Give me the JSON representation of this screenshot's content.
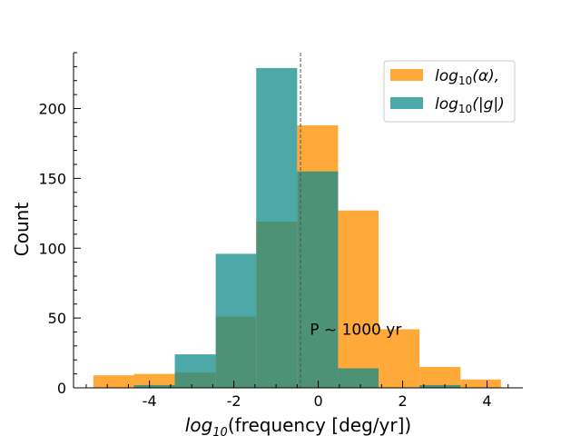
{
  "chart_data": {
    "type": "histogram",
    "xlabel": "log10(frequency [deg/yr])",
    "xlabel_parts": {
      "fn": "log",
      "sub": "10",
      "rest": "(frequency [deg/yr])"
    },
    "ylabel": "Count",
    "xlim": [
      -5.8,
      4.85
    ],
    "ylim": [
      0,
      240
    ],
    "xticks": [
      -4,
      -2,
      0,
      2,
      4
    ],
    "xtick_labels": [
      "-4",
      "-2",
      "0",
      "2",
      "4"
    ],
    "yticks": [
      0,
      50,
      100,
      150,
      200
    ],
    "ytick_labels": [
      "0",
      "50",
      "100",
      "150",
      "200"
    ],
    "series": [
      {
        "name": "log10(α),",
        "legend_parts": {
          "fn": "log",
          "sub": "10",
          "rest": "(α),"
        },
        "color": "#ff9a17",
        "alpha": 0.85,
        "bins": [
          {
            "x0": -5.33,
            "x1": -4.37,
            "count": 9
          },
          {
            "x0": -4.37,
            "x1": -3.4,
            "count": 10
          },
          {
            "x0": -3.4,
            "x1": -2.43,
            "count": 11
          },
          {
            "x0": -2.43,
            "x1": -1.47,
            "count": 51
          },
          {
            "x0": -1.47,
            "x1": -0.5,
            "count": 119
          },
          {
            "x0": -0.5,
            "x1": 0.47,
            "count": 188
          },
          {
            "x0": 0.47,
            "x1": 1.43,
            "count": 127
          },
          {
            "x0": 1.43,
            "x1": 2.4,
            "count": 42
          },
          {
            "x0": 2.4,
            "x1": 3.37,
            "count": 15
          },
          {
            "x0": 3.37,
            "x1": 4.33,
            "count": 6
          }
        ]
      },
      {
        "name": "log10(|g|)",
        "legend_parts": {
          "fn": "log",
          "sub": "10",
          "rest": "(|g|)"
        },
        "color": "#128b8b",
        "alpha": 0.75,
        "bins": [
          {
            "x0": -4.37,
            "x1": -3.4,
            "count": 2
          },
          {
            "x0": -3.4,
            "x1": -2.43,
            "count": 24
          },
          {
            "x0": -2.43,
            "x1": -1.47,
            "count": 96
          },
          {
            "x0": -1.47,
            "x1": -0.5,
            "count": 229
          },
          {
            "x0": -0.5,
            "x1": 0.47,
            "count": 155
          },
          {
            "x0": 0.47,
            "x1": 1.43,
            "count": 14
          },
          {
            "x0": 2.4,
            "x1": 3.37,
            "count": 2
          }
        ]
      }
    ],
    "vline": {
      "x": -0.42,
      "style": "dashed"
    },
    "annotation": {
      "text": "P$\\sim$1000 yr",
      "display": "P ~ 1000 yr",
      "x": -0.2,
      "y": 38
    },
    "legend_position": "top-right"
  }
}
